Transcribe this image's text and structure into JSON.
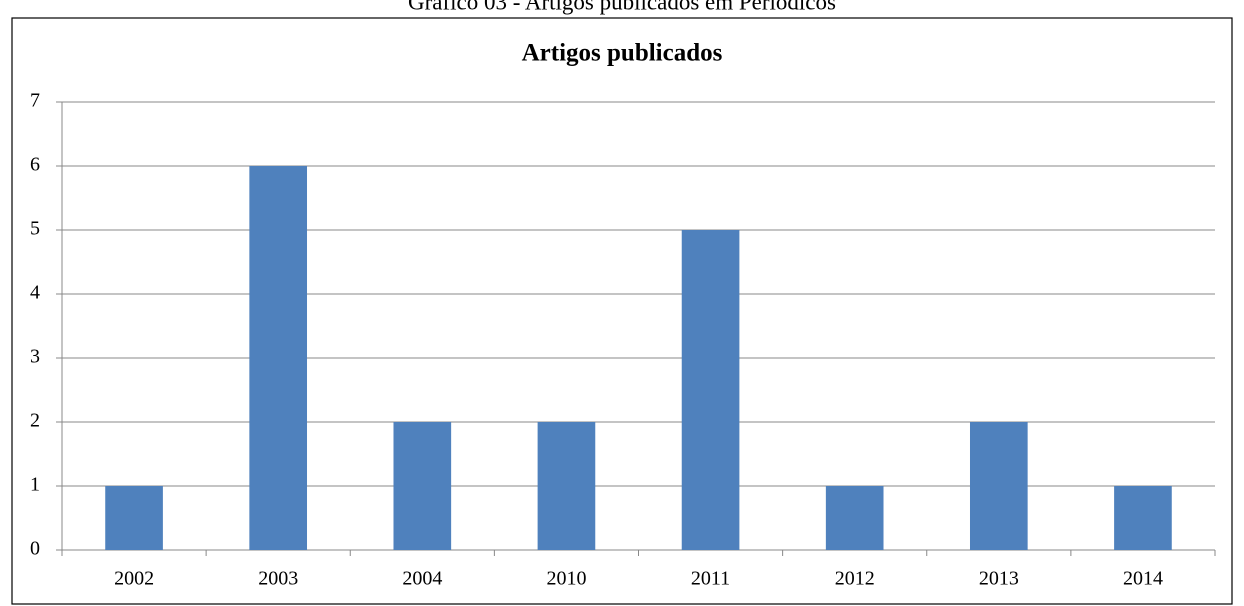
{
  "caption": "Gráfico 03 - Artigos publicados em Periódicos",
  "chart_data": {
    "type": "bar",
    "title": "Artigos publicados",
    "categories": [
      "2002",
      "2003",
      "2004",
      "2010",
      "2011",
      "2012",
      "2013",
      "2014"
    ],
    "values": [
      1,
      6,
      2,
      2,
      5,
      1,
      2,
      1
    ],
    "color": "#4f81bd",
    "ylim": [
      0,
      7
    ],
    "yticks": [
      0,
      1,
      2,
      3,
      4,
      5,
      6,
      7
    ],
    "grid": true
  }
}
